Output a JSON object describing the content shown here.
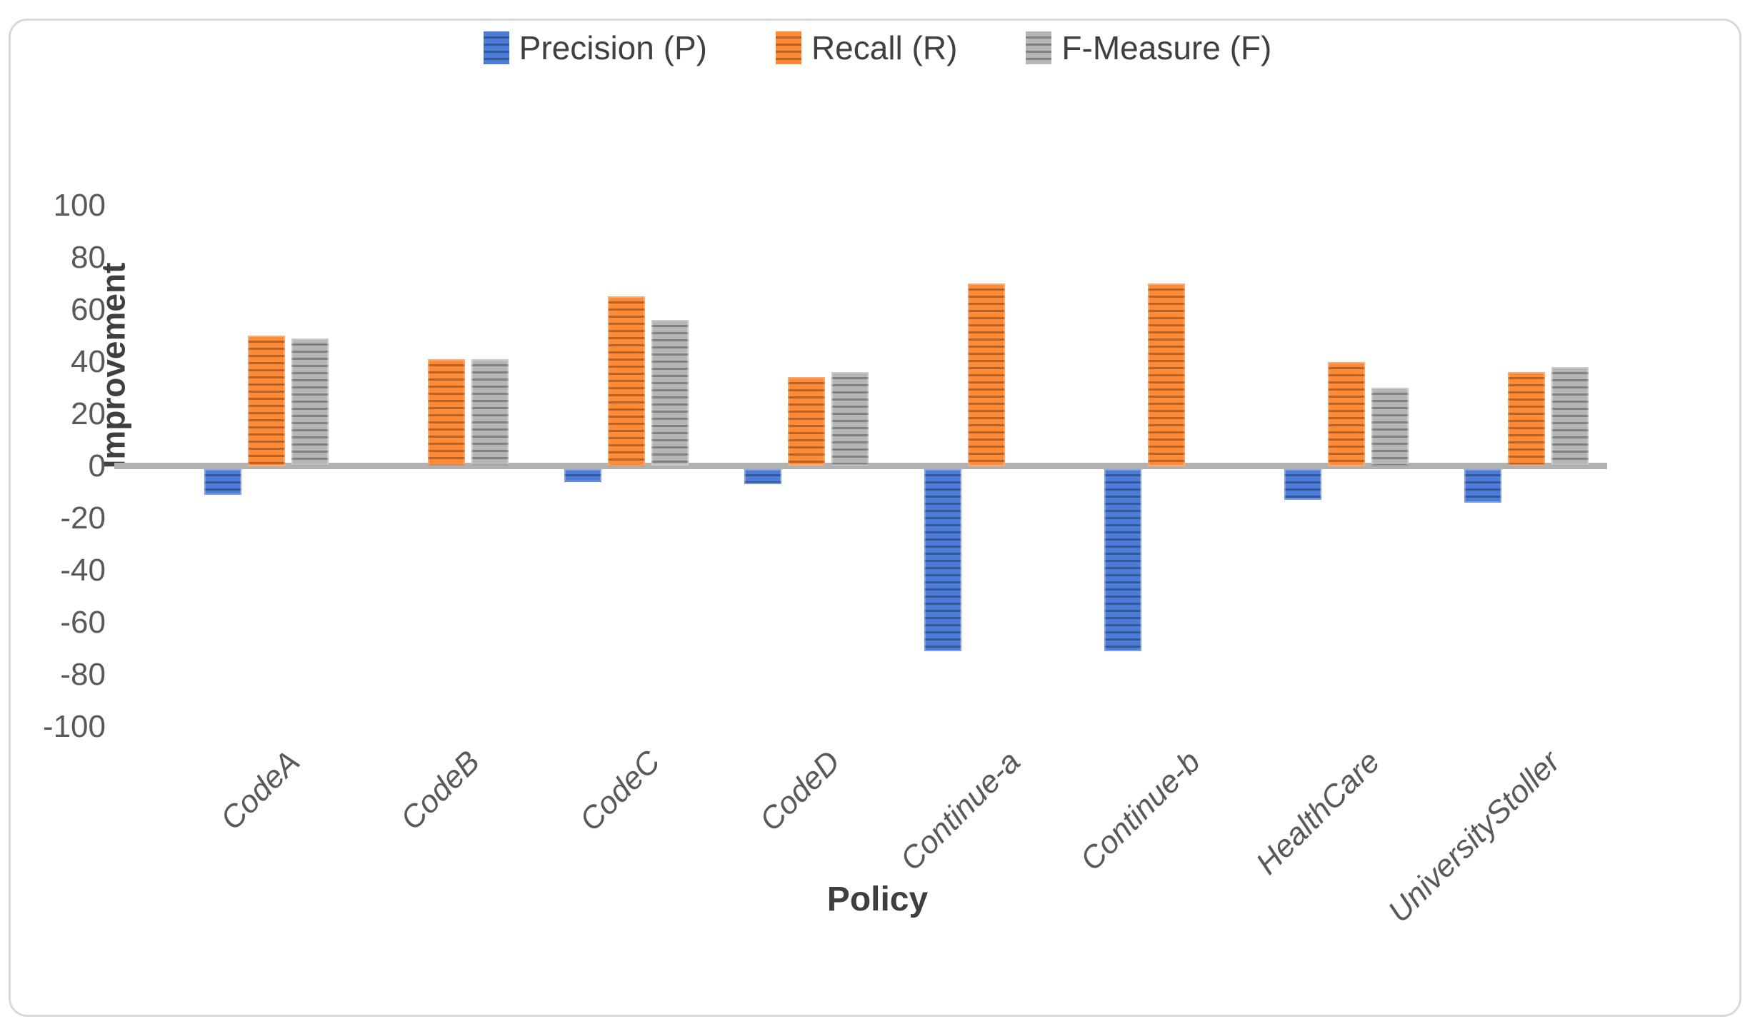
{
  "chart_data": {
    "type": "bar",
    "title": "",
    "categories": [
      "CodeA",
      "CodeB",
      "CodeC",
      "CodeD",
      "Continue-a",
      "Continue-b",
      "HealthCare",
      "UniversityStoller"
    ],
    "series": [
      {
        "name": "Precision (P)",
        "color": "#4472C4",
        "values": [
          -10,
          0,
          -5,
          -6,
          -70,
          -70,
          -12,
          -13
        ]
      },
      {
        "name": "Recall (R)",
        "color": "#ED7D31",
        "values": [
          50,
          41,
          65,
          34,
          70,
          70,
          40,
          36
        ]
      },
      {
        "name": "F-Measure (F)",
        "color": "#A5A5A5",
        "values": [
          49,
          41,
          56,
          36,
          0,
          0,
          30,
          38
        ]
      }
    ],
    "xlabel": "Policy",
    "ylabel": "Improvement",
    "ylim": [
      -100,
      100
    ],
    "ytick_step": 20,
    "yticks": [
      "100",
      "80",
      "60",
      "40",
      "20",
      "0",
      "-20",
      "-40",
      "-60",
      "-80",
      "-100"
    ],
    "grid": false,
    "legend_position": "top",
    "bar_pattern": "horizontal-stripes",
    "axis_color": "#b1b1b1",
    "tick_text_color": "#595959",
    "label_text_color": "#3f3f3f"
  }
}
